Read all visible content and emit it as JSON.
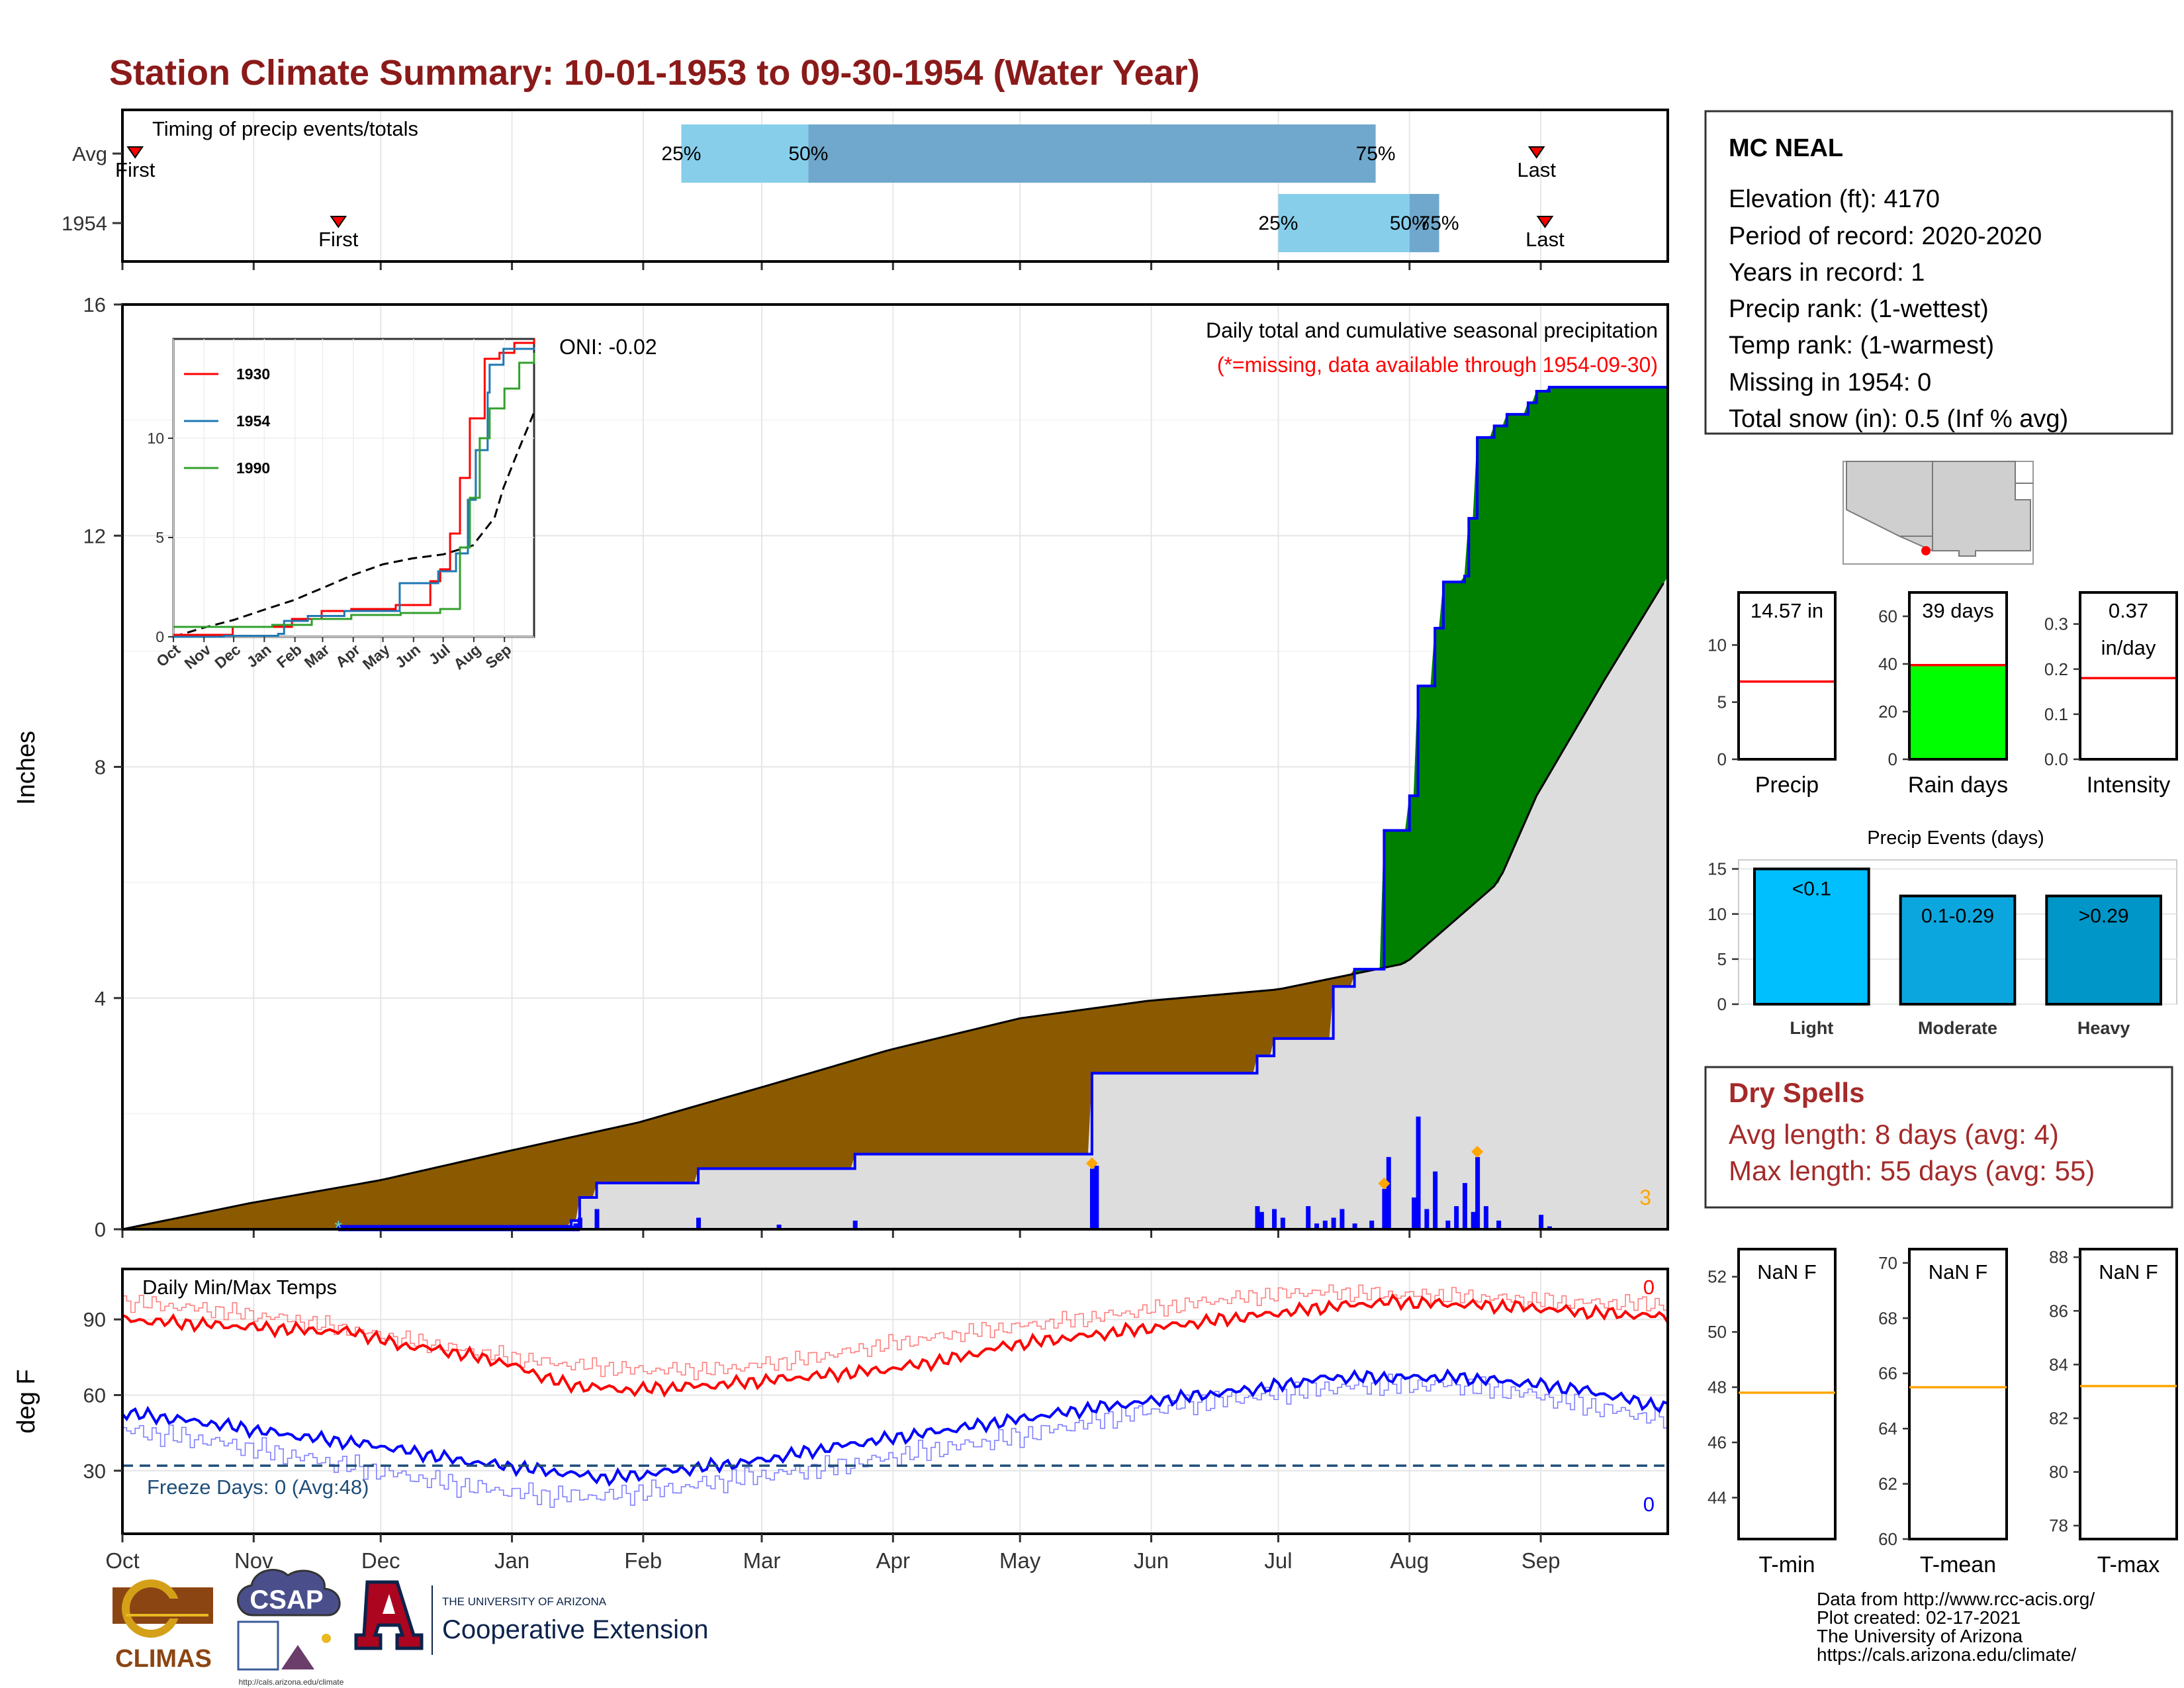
{
  "title": "Station Climate Summary: 10-01-1953 to 09-30-1954 (Water Year)",
  "colors": {
    "title": "#8B1A1A",
    "brown": "#8B5A00",
    "green": "#008000",
    "blue": "#0000FF",
    "gray": "#DDDDDD",
    "red": "#FF0000",
    "orange": "#FFA500",
    "light_blue": "#87CEEB",
    "steel_blue": "#6FA8CC",
    "bright_green": "#00FF00",
    "sky": "#00BFFF",
    "freeze": "#1F4E79",
    "dry": "#A52A2A"
  },
  "timing": {
    "heading": "Timing of precip events/totals",
    "rows": [
      {
        "label": "Avg",
        "first_label": "First",
        "last_label": "Last",
        "first_day": 3,
        "last_day": 334,
        "p25": 132,
        "p50": 162,
        "p75": 296,
        "pct": [
          "25%",
          "50%",
          "75%"
        ]
      },
      {
        "label": "1954",
        "first_label": "First",
        "last_label": "Last",
        "first_day": 51,
        "last_day": 336,
        "p25": 273,
        "p50": 304,
        "p75": 311,
        "pct": [
          "25%",
          "50%",
          "75%"
        ]
      }
    ]
  },
  "months": [
    "Oct",
    "Nov",
    "Dec",
    "Jan",
    "Feb",
    "Mar",
    "Apr",
    "May",
    "Jun",
    "Jul",
    "Aug",
    "Sep"
  ],
  "chart_data": [
    {
      "id": "precip_main",
      "type": "area",
      "title": "Daily total and cumulative seasonal precipitation",
      "subtitle": "(*=missing, data available through 1954-09-30)",
      "oni_label": "ONI: -0.02",
      "ylabel": "Inches",
      "ylim": [
        0,
        16
      ],
      "yticks": [
        0,
        4,
        8,
        12,
        16
      ],
      "xlim": [
        0,
        365
      ],
      "corner_count": "3",
      "avg_cumulative": [
        [
          0,
          0.0
        ],
        [
          30,
          0.45
        ],
        [
          61,
          0.85
        ],
        [
          91,
          1.35
        ],
        [
          122,
          1.85
        ],
        [
          153,
          2.5
        ],
        [
          181,
          3.1
        ],
        [
          212,
          3.65
        ],
        [
          242,
          3.95
        ],
        [
          273,
          4.15
        ],
        [
          303,
          4.6
        ],
        [
          325,
          6.0
        ],
        [
          334,
          7.5
        ],
        [
          350,
          9.5
        ],
        [
          365,
          11.3
        ]
      ],
      "cumulative_1954": [
        [
          0,
          0.0
        ],
        [
          51,
          0.0
        ],
        [
          51,
          0.05
        ],
        [
          106,
          0.05
        ],
        [
          106,
          0.15
        ],
        [
          108,
          0.15
        ],
        [
          108,
          0.55
        ],
        [
          112,
          0.55
        ],
        [
          112,
          0.8
        ],
        [
          136,
          0.8
        ],
        [
          136,
          1.05
        ],
        [
          173,
          1.05
        ],
        [
          173,
          1.3
        ],
        [
          229,
          1.3
        ],
        [
          229,
          2.7
        ],
        [
          268,
          2.7
        ],
        [
          268,
          3.0
        ],
        [
          272,
          3.0
        ],
        [
          272,
          3.3
        ],
        [
          286,
          3.3
        ],
        [
          286,
          4.2
        ],
        [
          291,
          4.2
        ],
        [
          291,
          4.5
        ],
        [
          298,
          4.5
        ],
        [
          298,
          4.5
        ],
        [
          298,
          5.8
        ],
        [
          298,
          6.9
        ],
        [
          304,
          6.9
        ],
        [
          304,
          7.5
        ],
        [
          306,
          7.5
        ],
        [
          306,
          9.4
        ],
        [
          310,
          9.4
        ],
        [
          310,
          10.4
        ],
        [
          312,
          10.4
        ],
        [
          312,
          11.2
        ],
        [
          317,
          11.2
        ],
        [
          317,
          11.3
        ],
        [
          318,
          11.3
        ],
        [
          318,
          12.3
        ],
        [
          320,
          12.3
        ],
        [
          320,
          13.7
        ],
        [
          324,
          13.7
        ],
        [
          324,
          13.9
        ],
        [
          327,
          13.9
        ],
        [
          327,
          14.1
        ],
        [
          332,
          14.1
        ],
        [
          332,
          14.3
        ],
        [
          334,
          14.3
        ],
        [
          334,
          14.5
        ],
        [
          337,
          14.5
        ],
        [
          337,
          14.57
        ],
        [
          365,
          14.57
        ]
      ],
      "daily_bars": [
        [
          51,
          0.03
        ],
        [
          106,
          0.06
        ],
        [
          107,
          0.1
        ],
        [
          108,
          0.2
        ],
        [
          112,
          0.35
        ],
        [
          136,
          0.2
        ],
        [
          155,
          0.08
        ],
        [
          173,
          0.15
        ],
        [
          230,
          1.1
        ],
        [
          229,
          1.05
        ],
        [
          268,
          0.4
        ],
        [
          269,
          0.3
        ],
        [
          272,
          0.35
        ],
        [
          274,
          0.2
        ],
        [
          280,
          0.4
        ],
        [
          282,
          0.1
        ],
        [
          284,
          0.15
        ],
        [
          286,
          0.2
        ],
        [
          288,
          0.35
        ],
        [
          291,
          0.1
        ],
        [
          295,
          0.15
        ],
        [
          298,
          0.7
        ],
        [
          299,
          1.25
        ],
        [
          305,
          0.55
        ],
        [
          306,
          1.95
        ],
        [
          308,
          0.35
        ],
        [
          310,
          1.0
        ],
        [
          313,
          0.15
        ],
        [
          315,
          0.4
        ],
        [
          317,
          0.8
        ],
        [
          319,
          0.3
        ],
        [
          320,
          1.25
        ],
        [
          322,
          0.4
        ],
        [
          325,
          0.15
        ],
        [
          335,
          0.25
        ],
        [
          337,
          0.05
        ]
      ],
      "event_markers": [
        229,
        298,
        320
      ],
      "missing_markers": [
        51
      ]
    },
    {
      "id": "inset",
      "type": "line",
      "ylim": [
        0,
        15
      ],
      "yticks": [
        0,
        5,
        10
      ],
      "series": [
        {
          "name": "1930",
          "color": "#FF0000",
          "points": [
            [
              0,
              0.1
            ],
            [
              60,
              0.5
            ],
            [
              120,
              0.9
            ],
            [
              150,
              1.3
            ],
            [
              180,
              1.4
            ],
            [
              225,
              1.6
            ],
            [
              260,
              2.8
            ],
            [
              270,
              3.4
            ],
            [
              280,
              5.2
            ],
            [
              290,
              8.0
            ],
            [
              300,
              11.0
            ],
            [
              315,
              14.0
            ],
            [
              330,
              14.3
            ],
            [
              345,
              14.8
            ],
            [
              365,
              15.0
            ]
          ]
        },
        {
          "name": "1954",
          "color": "#1F77B4",
          "points": [
            [
              0,
              0.0
            ],
            [
              51,
              0.05
            ],
            [
              106,
              0.15
            ],
            [
              112,
              0.8
            ],
            [
              136,
              1.05
            ],
            [
              173,
              1.3
            ],
            [
              229,
              2.7
            ],
            [
              268,
              3.3
            ],
            [
              286,
              4.2
            ],
            [
              298,
              6.9
            ],
            [
              306,
              9.4
            ],
            [
              318,
              12.3
            ],
            [
              320,
              13.7
            ],
            [
              334,
              14.5
            ],
            [
              365,
              14.57
            ]
          ]
        },
        {
          "name": "1990",
          "color": "#33A02C",
          "points": [
            [
              0,
              0.5
            ],
            [
              50,
              0.5
            ],
            [
              100,
              0.6
            ],
            [
              140,
              0.9
            ],
            [
              180,
              1.1
            ],
            [
              230,
              1.2
            ],
            [
              270,
              1.4
            ],
            [
              290,
              4.5
            ],
            [
              300,
              7.0
            ],
            [
              310,
              10.0
            ],
            [
              320,
              11.5
            ],
            [
              335,
              12.5
            ],
            [
              350,
              13.8
            ],
            [
              365,
              14.3
            ]
          ]
        }
      ],
      "avg_points": [
        [
          0,
          0.0
        ],
        [
          30,
          0.45
        ],
        [
          61,
          0.85
        ],
        [
          91,
          1.35
        ],
        [
          122,
          1.85
        ],
        [
          153,
          2.5
        ],
        [
          181,
          3.1
        ],
        [
          212,
          3.65
        ],
        [
          242,
          3.95
        ],
        [
          273,
          4.15
        ],
        [
          303,
          4.6
        ],
        [
          325,
          6.0
        ],
        [
          334,
          7.5
        ],
        [
          350,
          9.5
        ],
        [
          365,
          11.3
        ]
      ]
    },
    {
      "id": "temps",
      "type": "line",
      "title": "Daily Min/Max Temps",
      "ylabel": "deg F",
      "ylim": [
        5,
        110
      ],
      "yticks": [
        30,
        60,
        90
      ],
      "freeze_line": 32,
      "freeze_label": "Freeze Days: 0 (Avg:48)",
      "count_high": "0",
      "count_low": "0",
      "max_obs": [
        [
          0,
          90
        ],
        [
          20,
          88
        ],
        [
          40,
          86
        ],
        [
          55,
          85
        ],
        [
          65,
          80
        ],
        [
          75,
          78
        ],
        [
          90,
          73
        ],
        [
          105,
          64
        ],
        [
          120,
          62
        ],
        [
          140,
          64
        ],
        [
          160,
          67
        ],
        [
          180,
          70
        ],
        [
          195,
          74
        ],
        [
          210,
          80
        ],
        [
          230,
          84
        ],
        [
          250,
          88
        ],
        [
          270,
          92
        ],
        [
          285,
          95
        ],
        [
          300,
          97
        ],
        [
          315,
          96
        ],
        [
          330,
          95
        ],
        [
          345,
          93
        ],
        [
          365,
          91
        ]
      ],
      "max_normal": [
        [
          0,
          97
        ],
        [
          20,
          94
        ],
        [
          40,
          90
        ],
        [
          60,
          84
        ],
        [
          80,
          78
        ],
        [
          100,
          73
        ],
        [
          120,
          70
        ],
        [
          140,
          70
        ],
        [
          160,
          74
        ],
        [
          180,
          80
        ],
        [
          200,
          85
        ],
        [
          230,
          91
        ],
        [
          260,
          98
        ],
        [
          280,
          101
        ],
        [
          300,
          100
        ],
        [
          320,
          99
        ],
        [
          340,
          97
        ],
        [
          365,
          96
        ]
      ],
      "min_obs": [
        [
          0,
          53
        ],
        [
          20,
          49
        ],
        [
          40,
          44
        ],
        [
          60,
          40
        ],
        [
          80,
          34
        ],
        [
          100,
          30
        ],
        [
          115,
          27
        ],
        [
          130,
          30
        ],
        [
          150,
          34
        ],
        [
          170,
          40
        ],
        [
          190,
          45
        ],
        [
          210,
          50
        ],
        [
          230,
          55
        ],
        [
          250,
          59
        ],
        [
          270,
          63
        ],
        [
          285,
          67
        ],
        [
          300,
          67
        ],
        [
          315,
          67
        ],
        [
          330,
          65
        ],
        [
          345,
          62
        ],
        [
          365,
          55
        ]
      ],
      "min_normal": [
        [
          0,
          46
        ],
        [
          20,
          42
        ],
        [
          40,
          36
        ],
        [
          60,
          30
        ],
        [
          80,
          24
        ],
        [
          100,
          20
        ],
        [
          115,
          20
        ],
        [
          130,
          23
        ],
        [
          150,
          28
        ],
        [
          170,
          32
        ],
        [
          190,
          38
        ],
        [
          210,
          43
        ],
        [
          230,
          50
        ],
        [
          250,
          56
        ],
        [
          270,
          60
        ],
        [
          285,
          63
        ],
        [
          300,
          64
        ],
        [
          315,
          64
        ],
        [
          330,
          61
        ],
        [
          345,
          56
        ],
        [
          365,
          50
        ]
      ]
    },
    {
      "id": "gauges",
      "type": "bar",
      "items": [
        {
          "name": "Precip",
          "value_label": "14.57 in",
          "value": 14.57,
          "ylim": [
            0,
            14.6
          ],
          "yticks": [
            0,
            5,
            10
          ],
          "ref": 6.8,
          "fill": ""
        },
        {
          "name": "Rain days",
          "value_label": "39 days",
          "value": 39,
          "ylim": [
            0,
            70
          ],
          "yticks": [
            0,
            20,
            40,
            60
          ],
          "ref": 39.5,
          "fill": "#00FF00"
        },
        {
          "name": "Intensity",
          "value_label": "0.37\nin/day",
          "value": 0.37,
          "ylim": [
            0,
            0.37
          ],
          "yticks": [
            0.0,
            0.1,
            0.2,
            0.3
          ],
          "ref": 0.18,
          "fill": ""
        }
      ]
    },
    {
      "id": "events",
      "type": "bar",
      "title": "Precip Events (days)",
      "categories": [
        "Light",
        "Moderate",
        "Heavy"
      ],
      "bar_labels": [
        "<0.1",
        "0.1-0.29",
        ">0.29"
      ],
      "values": [
        15,
        12,
        12
      ],
      "ylim": [
        0,
        16
      ],
      "yticks": [
        0,
        5,
        10,
        15
      ],
      "colors": [
        "#00BFFF",
        "#0CA6DE",
        "#0096C7"
      ]
    },
    {
      "id": "temp_gauges",
      "type": "bar",
      "items": [
        {
          "name": "T-min",
          "value_label": "NaN F",
          "ylim": [
            42.5,
            53
          ],
          "yticks": [
            44,
            46,
            48,
            50,
            52
          ],
          "ref": 47.8
        },
        {
          "name": "T-mean",
          "value_label": "NaN F",
          "ylim": [
            60,
            70.5
          ],
          "yticks": [
            60,
            62,
            64,
            66,
            68,
            70
          ],
          "ref": 65.5
        },
        {
          "name": "T-max",
          "value_label": "NaN F",
          "ylim": [
            77.5,
            88.3
          ],
          "yticks": [
            78,
            80,
            82,
            84,
            86,
            88
          ],
          "ref": 83.2
        }
      ]
    }
  ],
  "station": {
    "name": "MC NEAL",
    "lines": [
      "Elevation (ft): 4170",
      "Period of record: 2020-2020",
      "Years in record: 1",
      "Precip rank:  (1-wettest)",
      "Temp rank:  (1-warmest)",
      "Missing in 1954: 0",
      "Total snow (in): 0.5 (Inf % avg)"
    ]
  },
  "dry_spells": {
    "title": "Dry Spells",
    "lines": [
      "Avg length: 8 days (avg: 4)",
      "Max length: 55 days (avg: 55)"
    ]
  },
  "credits": [
    "Data from http://www.rcc-acis.org/",
    "Plot created: 02-17-2021",
    "The University of Arizona",
    "https://cals.arizona.edu/climate/"
  ],
  "logos": {
    "climas": "CLIMAS",
    "csap": "CSAP",
    "csap_url": "http://cals.arizona.edu/climate",
    "ua_top": "THE UNIVERSITY OF ARIZONA",
    "ua_bottom": "Cooperative Extension"
  }
}
